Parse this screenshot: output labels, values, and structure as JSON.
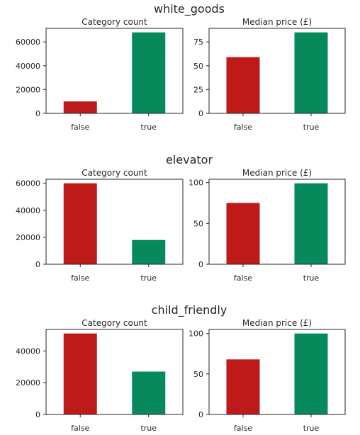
{
  "colors": {
    "false": "#BE1A1A",
    "true": "#078A5B"
  },
  "chart_data": [
    {
      "group": "white_goods",
      "panels": [
        {
          "type": "bar",
          "title": "Category count",
          "categories": [
            "false",
            "true"
          ],
          "values": [
            10000,
            68000
          ],
          "ylim": [
            0,
            71400
          ],
          "yticks": [
            0,
            20000,
            40000,
            60000
          ],
          "ytick_labels": [
            "0",
            "20000",
            "40000",
            "60000"
          ]
        },
        {
          "type": "bar",
          "title": "Median price (£)",
          "categories": [
            "false",
            "true"
          ],
          "values": [
            59,
            85
          ],
          "ylim": [
            0,
            89.25
          ],
          "yticks": [
            0,
            25,
            50,
            75
          ],
          "ytick_labels": [
            "0",
            "25",
            "50",
            "75"
          ]
        }
      ]
    },
    {
      "group": "elevator",
      "panels": [
        {
          "type": "bar",
          "title": "Category count",
          "categories": [
            "false",
            "true"
          ],
          "values": [
            60000,
            18000
          ],
          "ylim": [
            0,
            63000
          ],
          "yticks": [
            0,
            20000,
            40000,
            60000
          ],
          "ytick_labels": [
            "0",
            "20000",
            "40000",
            "60000"
          ]
        },
        {
          "type": "bar",
          "title": "Median price (£)",
          "categories": [
            "false",
            "true"
          ],
          "values": [
            75,
            99
          ],
          "ylim": [
            0,
            103.95
          ],
          "yticks": [
            0,
            50,
            100
          ],
          "ytick_labels": [
            "0",
            "50",
            "100"
          ]
        }
      ]
    },
    {
      "group": "child_friendly",
      "panels": [
        {
          "type": "bar",
          "title": "Category count",
          "categories": [
            "false",
            "true"
          ],
          "values": [
            51000,
            27000
          ],
          "ylim": [
            0,
            53550
          ],
          "yticks": [
            0,
            20000,
            40000
          ],
          "ytick_labels": [
            "0",
            "20000",
            "40000"
          ]
        },
        {
          "type": "bar",
          "title": "Median price (£)",
          "categories": [
            "false",
            "true"
          ],
          "values": [
            68,
            100
          ],
          "ylim": [
            0,
            105
          ],
          "yticks": [
            0,
            50,
            100
          ],
          "ytick_labels": [
            "0",
            "50",
            "100"
          ]
        }
      ]
    }
  ]
}
